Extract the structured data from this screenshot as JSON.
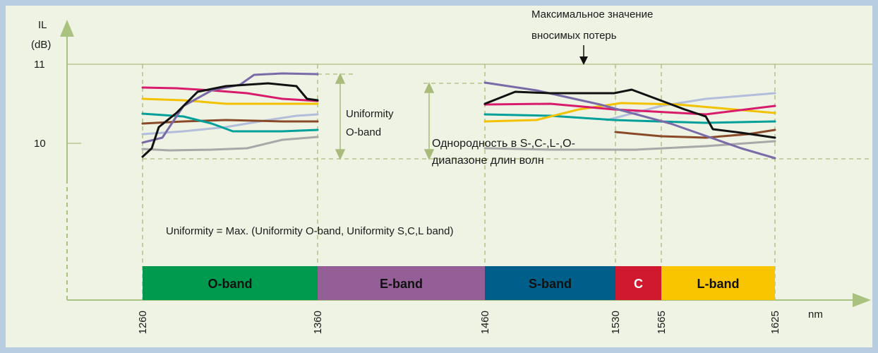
{
  "axis": {
    "y_label": "IL",
    "y_unit": "(dB)",
    "y_ticks": [
      11,
      10
    ],
    "x_unit": "nm",
    "x_ticks": [
      1260,
      1360,
      1460,
      1530,
      1565,
      1625
    ]
  },
  "bands": [
    {
      "label": "O-band"
    },
    {
      "label": "E-band"
    },
    {
      "label": "S-band"
    },
    {
      "label": "C"
    },
    {
      "label": "L-band"
    }
  ],
  "annotations": {
    "max_loss": [
      "Максимальное значение",
      "вносимых потерь"
    ],
    "uniformity_o": [
      "Uniformity",
      "O-band"
    ],
    "uniformity_scl": [
      "Однородность в S-,C-,L-,O-",
      "диапазоне длин волн"
    ],
    "formula": "Uniformity = Max. (Uniformity O-band, Uniformity S,C,L band)"
  }
}
